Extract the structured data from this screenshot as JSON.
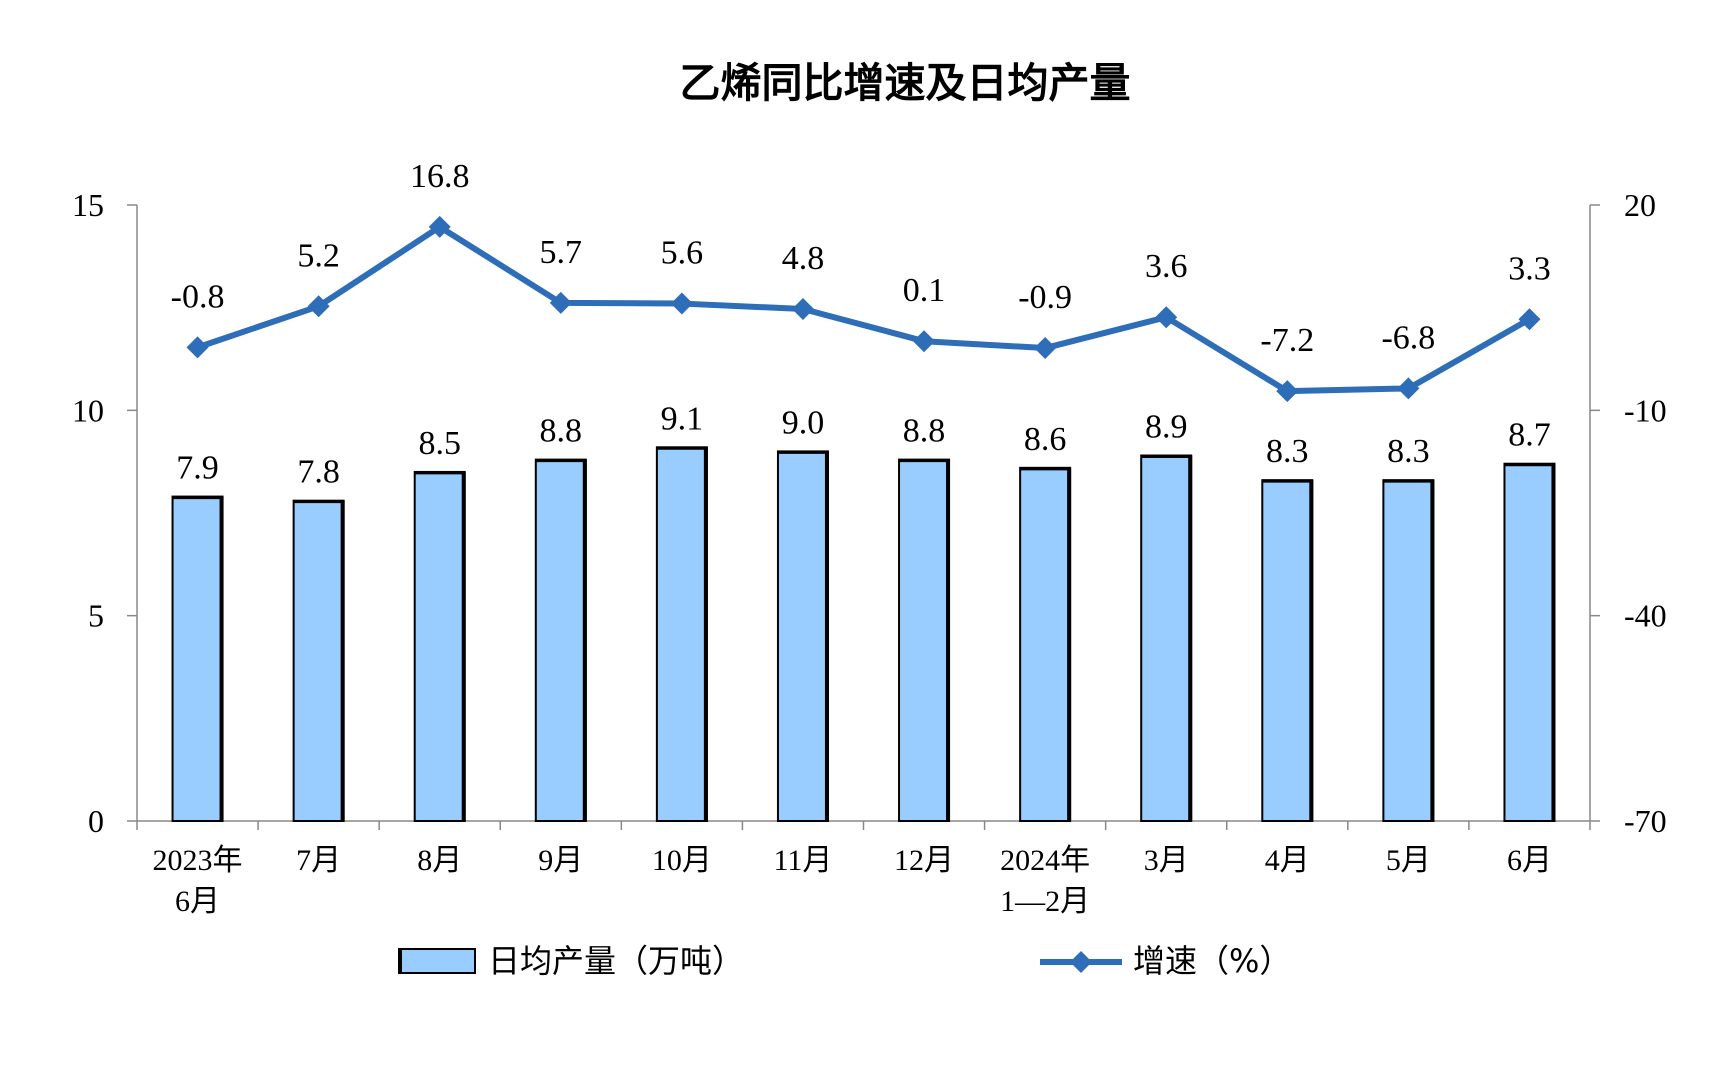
{
  "chart_data": {
    "type": "bar",
    "title": "乙烯同比增速及日均产量",
    "categories": [
      [
        "2023年",
        "6月"
      ],
      [
        "7月"
      ],
      [
        "8月"
      ],
      [
        "9月"
      ],
      [
        "10月"
      ],
      [
        "11月"
      ],
      [
        "12月"
      ],
      [
        "2024年",
        "1—2月"
      ],
      [
        "3月"
      ],
      [
        "4月"
      ],
      [
        "5月"
      ],
      [
        "6月"
      ]
    ],
    "series": [
      {
        "name": "日均产量（万吨）",
        "type": "bar",
        "axis": "left",
        "color": "#99CCFF",
        "values": [
          7.9,
          7.8,
          8.5,
          8.8,
          9.1,
          9.0,
          8.8,
          8.6,
          8.9,
          8.3,
          8.3,
          8.7
        ],
        "labels": [
          "7.9",
          "7.8",
          "8.5",
          "8.8",
          "9.1",
          "9.0",
          "8.8",
          "8.6",
          "8.9",
          "8.3",
          "8.3",
          "8.7"
        ]
      },
      {
        "name": "增速（%）",
        "type": "line",
        "axis": "right",
        "color": "#2E6DB8",
        "marker": "diamond",
        "values": [
          -0.8,
          5.2,
          16.8,
          5.7,
          5.6,
          4.8,
          0.1,
          -0.9,
          3.6,
          -7.2,
          -6.8,
          3.3
        ],
        "labels": [
          "-0.8",
          "5.2",
          "16.8",
          "5.7",
          "5.6",
          "4.8",
          "0.1",
          "-0.9",
          "3.6",
          "-7.2",
          "-6.8",
          "3.3"
        ]
      }
    ],
    "y_left": {
      "ylim": [
        0,
        15
      ],
      "ticks": [
        "0",
        "5",
        "10",
        "15"
      ]
    },
    "y_right": {
      "ylim": [
        -70,
        20
      ],
      "ticks": [
        "-70",
        "-40",
        "-10",
        "20"
      ]
    },
    "legend": {
      "position": "bottom"
    },
    "grid": false
  }
}
